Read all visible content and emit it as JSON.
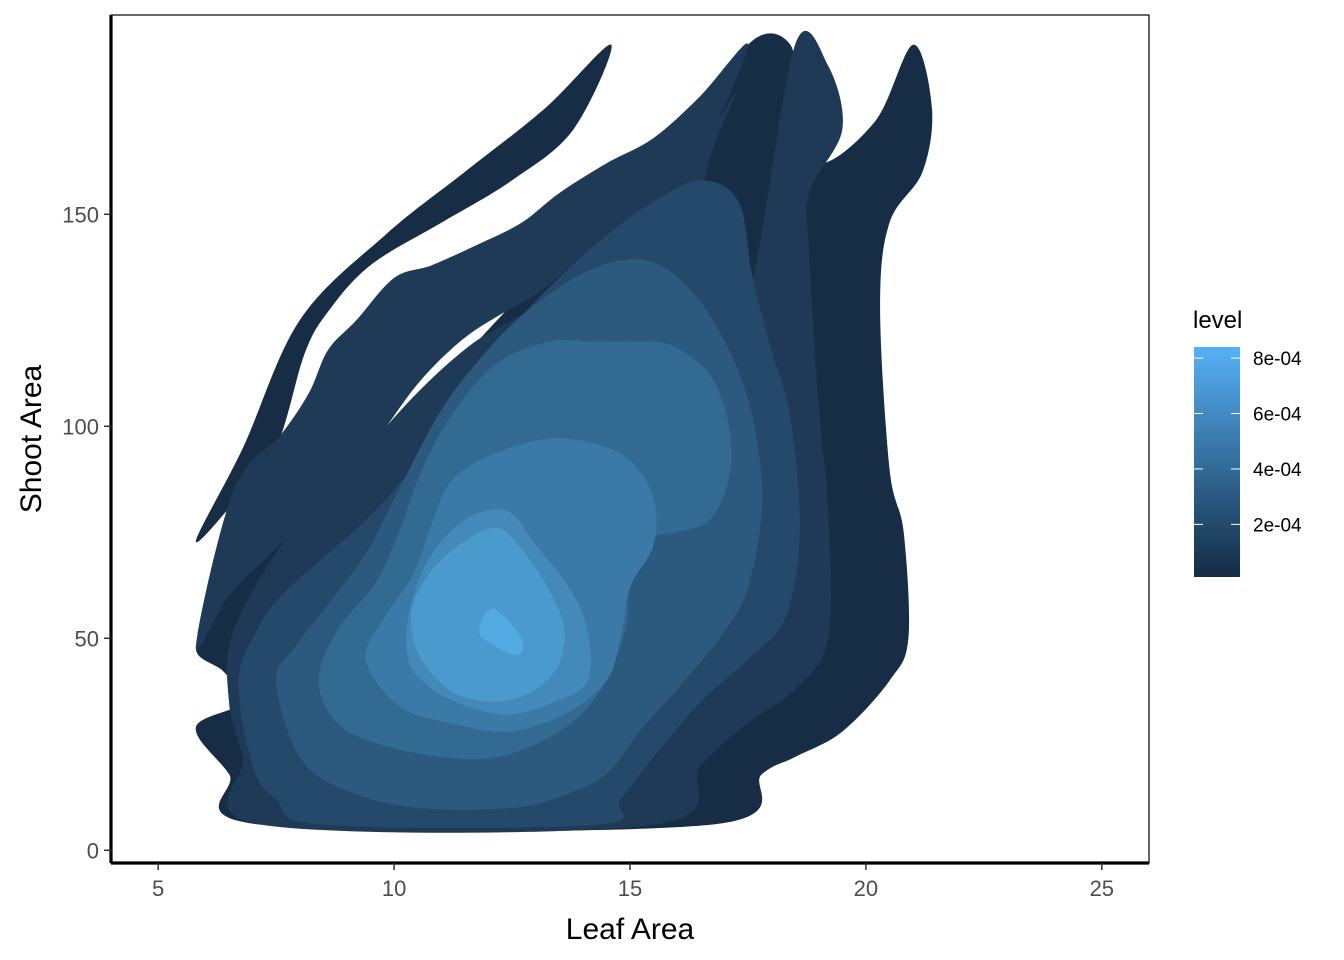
{
  "chart_data": {
    "type": "filled-density-contour",
    "title": "",
    "xlabel": "Leaf Area",
    "ylabel": "Shoot Area",
    "xlim": [
      4,
      26
    ],
    "ylim": [
      -3,
      197
    ],
    "xticks": [
      5,
      10,
      15,
      20,
      25
    ],
    "yticks": [
      0,
      50,
      100,
      150
    ],
    "grid": false,
    "legend": {
      "title": "level",
      "position": "right",
      "range": [
        1e-05,
        0.00084
      ],
      "ticks": [
        {
          "value": 0.0002,
          "label": "2e-04"
        },
        {
          "value": 0.0004,
          "label": "4e-04"
        },
        {
          "value": 0.0006,
          "label": "6e-04"
        },
        {
          "value": 0.0008,
          "label": "8e-04"
        }
      ],
      "low_color": "#132B43",
      "high_color": "#56B1F7"
    },
    "bands": [
      {
        "level": 5e-05,
        "color": "#172D45",
        "regions": [
          [
            [
              5.8,
              48
            ],
            [
              6.6,
              62
            ],
            [
              8.2,
              80
            ],
            [
              10.3,
              102
            ],
            [
              11.6,
              118
            ],
            [
              12.6,
              130
            ],
            [
              13.6,
              142
            ],
            [
              14.6,
              152
            ],
            [
              16,
              163
            ],
            [
              17.5,
              190
            ],
            [
              18.4,
              190
            ],
            [
              18.5,
              175
            ],
            [
              19,
              162
            ],
            [
              20.2,
              172
            ],
            [
              21,
              190
            ],
            [
              21.4,
              175
            ],
            [
              21.2,
              160
            ],
            [
              20.5,
              148
            ],
            [
              20.3,
              128
            ],
            [
              20.5,
              90
            ],
            [
              20.8,
              75
            ],
            [
              20.9,
              50
            ],
            [
              20.5,
              40
            ],
            [
              19.5,
              28
            ],
            [
              18.5,
              22
            ],
            [
              17.8,
              18
            ],
            [
              16.7,
              6
            ],
            [
              7.2,
              6
            ],
            [
              6.5,
              18
            ],
            [
              5.8,
              29
            ],
            [
              6.8,
              35
            ],
            [
              6.4,
              42
            ]
          ],
          [
            [
              5.8,
              73
            ],
            [
              6.6,
              82
            ],
            [
              7.5,
              95
            ],
            [
              8.1,
              117
            ],
            [
              8.6,
              127
            ],
            [
              9.5,
              138
            ],
            [
              11,
              148
            ],
            [
              12.5,
              158
            ],
            [
              13.8,
              170
            ],
            [
              14.6,
              190
            ],
            [
              13.2,
              175
            ],
            [
              11.5,
              160
            ],
            [
              9.8,
              145
            ],
            [
              8,
              125
            ],
            [
              6.8,
              95
            ]
          ]
        ]
      },
      {
        "level": 0.00015,
        "color": "#1E3A57",
        "regions": [
          [
            [
              5.8,
              48
            ],
            [
              6.5,
              60
            ],
            [
              7.3,
              69
            ],
            [
              8.2,
              79
            ],
            [
              9.5,
              95
            ],
            [
              10.5,
              110
            ],
            [
              11.4,
              120
            ],
            [
              12.2,
              126
            ],
            [
              13,
              131
            ],
            [
              13.8,
              138
            ],
            [
              14.6,
              143
            ],
            [
              15.5,
              152
            ],
            [
              16.5,
              164
            ],
            [
              17.5,
              190
            ],
            [
              16.5,
              178
            ],
            [
              15.5,
              168
            ],
            [
              14.5,
              162
            ],
            [
              13.5,
              155
            ],
            [
              12.7,
              148
            ],
            [
              11.8,
              143
            ],
            [
              10.8,
              138
            ],
            [
              10,
              135
            ],
            [
              9.2,
              125
            ],
            [
              8.6,
              118
            ],
            [
              8.2,
              108
            ],
            [
              7.6,
              98
            ],
            [
              6.6,
              85
            ]
          ],
          [
            [
              6.6,
              52
            ],
            [
              7.8,
              75
            ],
            [
              9.2,
              92
            ],
            [
              10.5,
              108
            ],
            [
              11.6,
              119
            ],
            [
              12.5,
              125
            ],
            [
              13.3,
              130
            ],
            [
              14.2,
              137
            ],
            [
              15,
              145
            ],
            [
              16,
              158
            ],
            [
              17.2,
              178
            ],
            [
              17.3,
              180
            ],
            [
              16.6,
              158
            ],
            [
              17.2,
              143
            ],
            [
              17.6,
              135
            ],
            [
              18.5,
              190
            ],
            [
              19.2,
              185
            ],
            [
              19.5,
              170
            ],
            [
              18.8,
              155
            ],
            [
              18.8,
              140
            ],
            [
              19,
              105
            ],
            [
              19.2,
              80
            ],
            [
              19.2,
              50
            ],
            [
              18.5,
              38
            ],
            [
              17.5,
              30
            ],
            [
              16.5,
              20
            ],
            [
              15.5,
              6
            ],
            [
              7.2,
              6
            ],
            [
              6.8,
              22
            ],
            [
              6.5,
              35
            ]
          ]
        ]
      },
      {
        "level": 0.00025,
        "color": "#25496A",
        "regions": [
          [
            [
              6.7,
              40
            ],
            [
              7.1,
              52
            ],
            [
              7.6,
              60
            ],
            [
              8.5,
              69
            ],
            [
              9.6,
              80
            ],
            [
              10.5,
              92
            ],
            [
              11.5,
              108
            ],
            [
              12.4,
              122
            ],
            [
              13.4,
              134
            ],
            [
              14.5,
              145
            ],
            [
              15.5,
              153
            ],
            [
              16.5,
              158
            ],
            [
              17.3,
              153
            ],
            [
              17.6,
              135
            ],
            [
              18,
              118
            ],
            [
              18.4,
              102
            ],
            [
              18.6,
              75
            ],
            [
              18.3,
              55
            ],
            [
              17.5,
              45
            ],
            [
              16.5,
              35
            ],
            [
              15.5,
              22
            ],
            [
              14.8,
              12
            ],
            [
              14.3,
              6
            ],
            [
              8.5,
              6
            ],
            [
              7.5,
              12
            ],
            [
              7,
              20
            ]
          ]
        ]
      },
      {
        "level": 0.00035,
        "color": "#2C5A7E",
        "regions": [
          [
            [
              7.5,
              40
            ],
            [
              7.9,
              48
            ],
            [
              8.6,
              58
            ],
            [
              9.4,
              70
            ],
            [
              10.1,
              85
            ],
            [
              10.9,
              102
            ],
            [
              11.6,
              113
            ],
            [
              12.5,
              124
            ],
            [
              13.4,
              132
            ],
            [
              14.4,
              138
            ],
            [
              15.4,
              139
            ],
            [
              16.3,
              132
            ],
            [
              17.1,
              118
            ],
            [
              17.6,
              102
            ],
            [
              17.8,
              82
            ],
            [
              17.5,
              62
            ],
            [
              16.9,
              50
            ],
            [
              16,
              38
            ],
            [
              15.2,
              28
            ],
            [
              14.5,
              18
            ],
            [
              13.6,
              13
            ],
            [
              12.5,
              10
            ],
            [
              10.5,
              10
            ],
            [
              9,
              14
            ],
            [
              8,
              22
            ]
          ]
        ]
      },
      {
        "level": 0.00045,
        "color": "#336A92",
        "regions": [
          [
            [
              8.4,
              40
            ],
            [
              8.8,
              52
            ],
            [
              9.6,
              63
            ],
            [
              10.1,
              75
            ],
            [
              10.6,
              90
            ],
            [
              11.3,
              104
            ],
            [
              12.2,
              115
            ],
            [
              13.3,
              120
            ],
            [
              14.2,
              120
            ],
            [
              15.1,
              120
            ],
            [
              15.9,
              119
            ],
            [
              16.7,
              112
            ],
            [
              17.1,
              100
            ],
            [
              17.1,
              88
            ],
            [
              16.7,
              78
            ],
            [
              16,
              75
            ],
            [
              15.4,
              73
            ],
            [
              15,
              62
            ],
            [
              14.9,
              52
            ],
            [
              14.4,
              38
            ],
            [
              13.5,
              28
            ],
            [
              12.2,
              22
            ],
            [
              11,
              22
            ],
            [
              9.7,
              25
            ],
            [
              8.8,
              30
            ]
          ]
        ]
      },
      {
        "level": 0.00055,
        "color": "#3B7AA6",
        "regions": [
          [
            [
              9.4,
              45
            ],
            [
              9.8,
              55
            ],
            [
              10.4,
              65
            ],
            [
              10.8,
              77
            ],
            [
              11.2,
              87
            ],
            [
              12,
              93
            ],
            [
              13.2,
              97
            ],
            [
              14.2,
              96
            ],
            [
              15,
              92
            ],
            [
              15.5,
              83
            ],
            [
              15.5,
              72
            ],
            [
              15,
              62
            ],
            [
              14.8,
              50
            ],
            [
              14.5,
              40
            ],
            [
              13.6,
              32
            ],
            [
              12.4,
              28
            ],
            [
              11.2,
              30
            ],
            [
              10.1,
              34
            ]
          ]
        ]
      },
      {
        "level": 0.00065,
        "color": "#438ABA",
        "regions": [
          [
            [
              10.3,
              45
            ],
            [
              10.3,
              55
            ],
            [
              10.7,
              68
            ],
            [
              11.5,
              78
            ],
            [
              12.4,
              80
            ],
            [
              13,
              72
            ],
            [
              13.7,
              62
            ],
            [
              14.1,
              52
            ],
            [
              14.1,
              40
            ],
            [
              13.4,
              35
            ],
            [
              12.4,
              32
            ],
            [
              11.3,
              35
            ],
            [
              10.6,
              40
            ]
          ]
        ]
      },
      {
        "level": 0.00075,
        "color": "#4B9ACE",
        "regions": [
          [
            [
              10.4,
              50
            ],
            [
              10.4,
              58
            ],
            [
              10.8,
              66
            ],
            [
              11.5,
              73
            ],
            [
              12.2,
              76
            ],
            [
              12.7,
              71
            ],
            [
              13.2,
              63
            ],
            [
              13.6,
              53
            ],
            [
              13.5,
              44
            ],
            [
              13,
              38
            ],
            [
              12.2,
              35
            ],
            [
              11.3,
              37
            ],
            [
              10.7,
              43
            ]
          ]
        ]
      },
      {
        "level": 0.00083,
        "color": "#53A9E2",
        "regions": [
          [
            [
              11.8,
              52
            ],
            [
              12.1,
              57
            ],
            [
              12.7,
              50
            ],
            [
              12.6,
              46
            ],
            [
              12,
              49
            ]
          ]
        ]
      }
    ]
  }
}
